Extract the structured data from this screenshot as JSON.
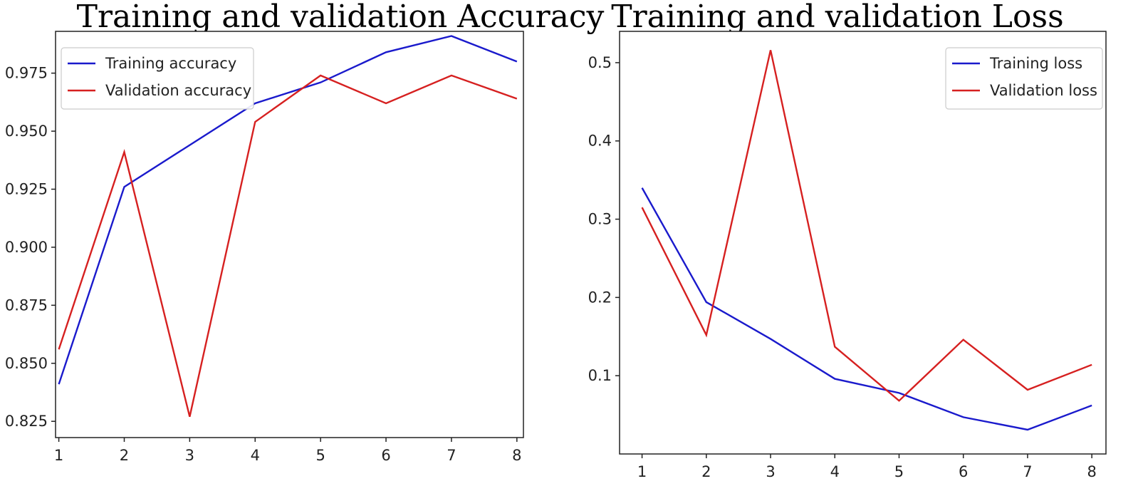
{
  "chart_data": [
    {
      "type": "line",
      "title": "Training and validation Accuracy",
      "xlabel": "",
      "ylabel": "",
      "x": [
        1,
        2,
        3,
        4,
        5,
        6,
        7,
        8
      ],
      "xlim": [
        0.95,
        8.1
      ],
      "ylim": [
        0.818,
        0.993
      ],
      "yticks": [
        0.825,
        0.85,
        0.875,
        0.9,
        0.925,
        0.95,
        0.975
      ],
      "ytick_labels": [
        "0.825",
        "0.850",
        "0.875",
        "0.900",
        "0.925",
        "0.950",
        "0.975"
      ],
      "xticks": [
        1,
        2,
        3,
        4,
        5,
        6,
        7,
        8
      ],
      "xtick_labels": [
        "1",
        "2",
        "3",
        "4",
        "5",
        "6",
        "7",
        "8"
      ],
      "grid": false,
      "legend_position": "top-left",
      "series": [
        {
          "name": "Training accuracy",
          "color": "#1a1acc",
          "values": [
            0.841,
            0.926,
            0.944,
            0.962,
            0.971,
            0.984,
            0.991,
            0.98
          ]
        },
        {
          "name": "Validation accuracy",
          "color": "#d62020",
          "values": [
            0.856,
            0.941,
            0.827,
            0.954,
            0.974,
            0.962,
            0.974,
            0.964
          ]
        }
      ]
    },
    {
      "type": "line",
      "title": "Training and validation Loss",
      "xlabel": "",
      "ylabel": "",
      "x": [
        1,
        2,
        3,
        4,
        5,
        6,
        7,
        8
      ],
      "xlim": [
        0.65,
        8.22
      ],
      "ylim": [
        0.0,
        0.54
      ],
      "yticks": [
        0.1,
        0.2,
        0.3,
        0.4,
        0.5
      ],
      "ytick_labels": [
        "0.1",
        "0.2",
        "0.3",
        "0.4",
        "0.5"
      ],
      "xticks": [
        1,
        2,
        3,
        4,
        5,
        6,
        7,
        8
      ],
      "xtick_labels": [
        "1",
        "2",
        "3",
        "4",
        "5",
        "6",
        "7",
        "8"
      ],
      "grid": false,
      "legend_position": "top-right",
      "series": [
        {
          "name": "Training loss",
          "color": "#1a1acc",
          "values": [
            0.34,
            0.194,
            0.147,
            0.096,
            0.078,
            0.047,
            0.031,
            0.062
          ]
        },
        {
          "name": "Validation loss",
          "color": "#d62020",
          "values": [
            0.315,
            0.152,
            0.516,
            0.137,
            0.068,
            0.146,
            0.082,
            0.114
          ]
        }
      ]
    }
  ]
}
